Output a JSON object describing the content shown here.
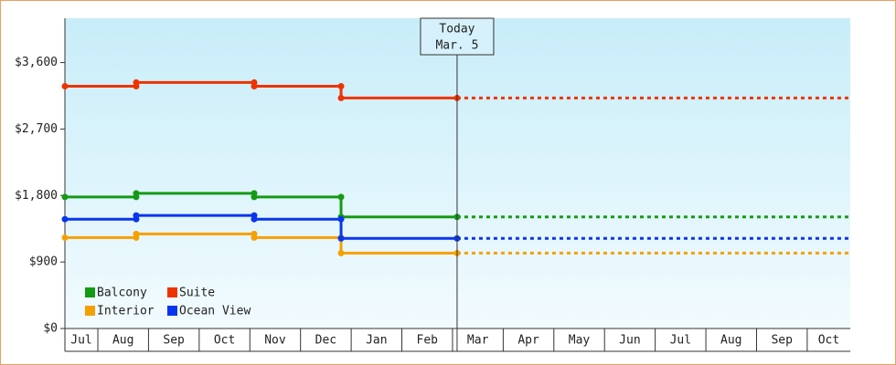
{
  "chart_data": {
    "type": "step-line",
    "x": [
      0.35,
      1.757,
      4.085,
      5.8,
      8.09
    ],
    "xlim": [
      0.35,
      15.85
    ],
    "xticks": [
      {
        "value": 0.675,
        "label": "Jul"
      },
      {
        "value": 1.5,
        "label": "Aug"
      },
      {
        "value": 2.5,
        "label": "Sep"
      },
      {
        "value": 3.5,
        "label": "Oct"
      },
      {
        "value": 4.5,
        "label": "Nov"
      },
      {
        "value": 5.5,
        "label": "Dec"
      },
      {
        "value": 6.5,
        "label": "Jan"
      },
      {
        "value": 7.5,
        "label": "Feb"
      },
      {
        "value": 8.5,
        "label": "Mar"
      },
      {
        "value": 9.5,
        "label": "Apr"
      },
      {
        "value": 10.5,
        "label": "May"
      },
      {
        "value": 11.5,
        "label": "Jun"
      },
      {
        "value": 12.5,
        "label": "Jul"
      },
      {
        "value": 13.5,
        "label": "Aug"
      },
      {
        "value": 14.5,
        "label": "Sep"
      },
      {
        "value": 15.425,
        "label": "Oct"
      }
    ],
    "ylim": [
      0,
      4200
    ],
    "yticks": [
      {
        "value": 0,
        "label": "$0"
      },
      {
        "value": 900,
        "label": "$900"
      },
      {
        "value": 1800,
        "label": "$1,800"
      },
      {
        "value": 2700,
        "label": "$2,700"
      },
      {
        "value": 3600,
        "label": "$3,600"
      }
    ],
    "series": [
      {
        "name": "Balcony",
        "color": "#159a15",
        "values": [
          1780,
          1830,
          1780,
          1510,
          1510
        ]
      },
      {
        "name": "Suite",
        "color": "#ee3300",
        "values": [
          3280,
          3330,
          3280,
          3120,
          3120
        ]
      },
      {
        "name": "Interior",
        "color": "#f5a000",
        "values": [
          1230,
          1280,
          1230,
          1020,
          1020
        ]
      },
      {
        "name": "Ocean View",
        "color": "#0a35ee",
        "values": [
          1480,
          1530,
          1480,
          1220,
          1220
        ]
      }
    ],
    "today": {
      "x": 8.09,
      "label": [
        "Today",
        "Mar. 5"
      ]
    },
    "legend": "lower-left",
    "projection": "dotted"
  }
}
